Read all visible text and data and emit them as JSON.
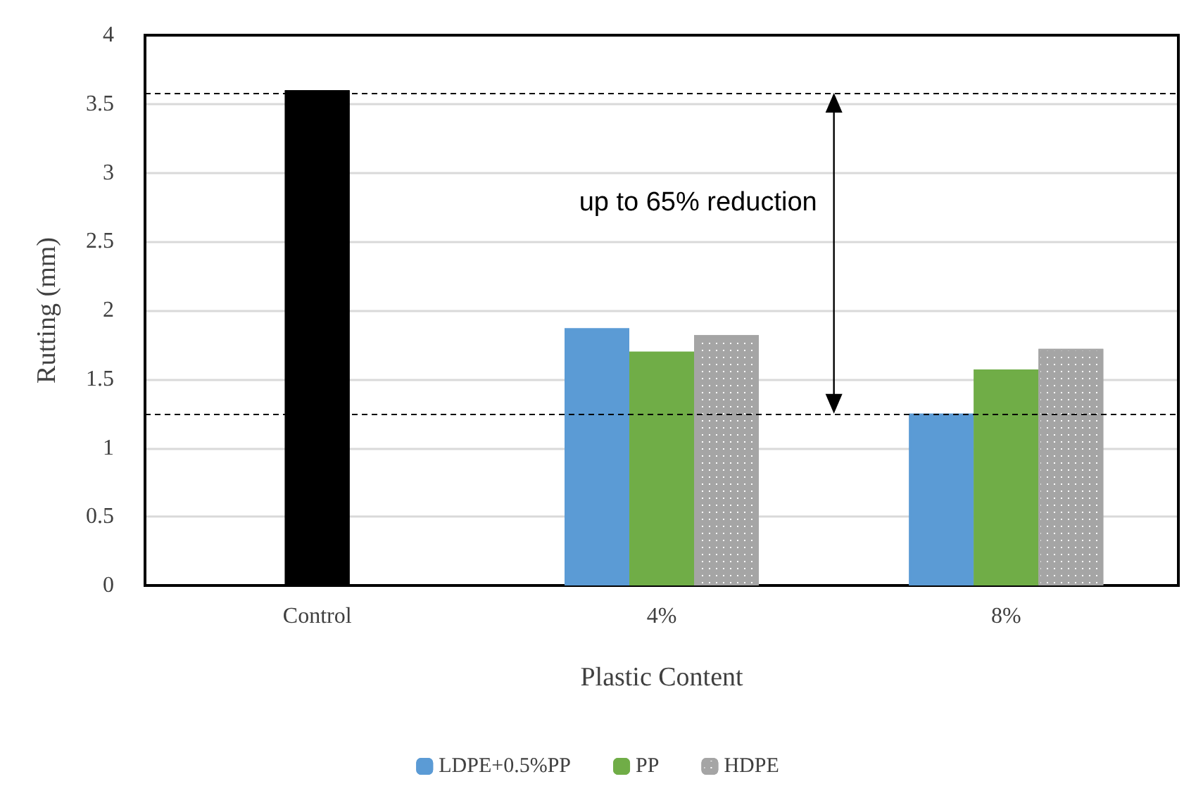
{
  "chart_data": {
    "type": "bar",
    "xlabel": "Plastic Content",
    "ylabel": "Rutting (mm)",
    "categories": [
      "Control",
      "4%",
      "8%"
    ],
    "series": [
      {
        "color": "#000000",
        "values": [
          3.6,
          null,
          null
        ]
      },
      {
        "name": "LDPE+0.5%PP",
        "color": "#5b9bd5",
        "values": [
          null,
          1.87,
          1.25
        ]
      },
      {
        "name": "PP",
        "color": "#70ad47",
        "values": [
          null,
          1.7,
          1.57
        ]
      },
      {
        "name": "HDPE",
        "color": "#a5a5a5",
        "values": [
          null,
          1.82,
          1.72
        ]
      }
    ],
    "ylim": [
      0,
      4
    ],
    "yticks": [
      0,
      0.5,
      1,
      1.5,
      2,
      2.5,
      3,
      3.5,
      4
    ],
    "grid": "y",
    "legend": "bottom",
    "ref_lines": [
      {
        "axis": "y",
        "value": 3.58,
        "color": "#000000",
        "line_style": "dashed"
      },
      {
        "axis": "y",
        "value": 1.25,
        "color": "#000000",
        "line_style": "dashed"
      }
    ],
    "annotations": [
      "up to 65% reduction"
    ]
  }
}
